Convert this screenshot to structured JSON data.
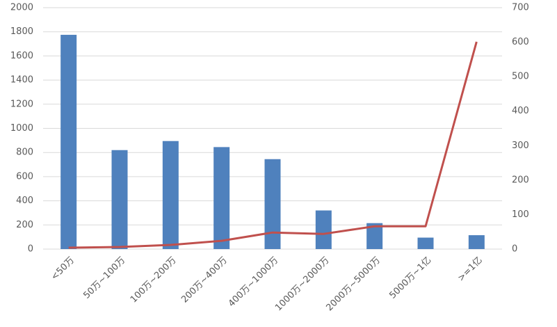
{
  "chart_data": {
    "type": "bar-line",
    "categories": [
      "<50万",
      "50万~100万",
      "100万~200万",
      "200万~400万",
      "400万~1000万",
      "1000万~2000万",
      "2000万~5000万",
      "5000万~1亿",
      ">=1亿"
    ],
    "series": [
      {
        "type": "bar",
        "color": "#4f81bd",
        "values": [
          1775,
          820,
          895,
          845,
          745,
          320,
          215,
          95,
          115
        ]
      },
      {
        "type": "line",
        "axis": "y2",
        "color": "#c0504d",
        "values": [
          4,
          6,
          12,
          24,
          48,
          44,
          66,
          66,
          601
        ]
      }
    ],
    "ylim": [
      0,
      2000
    ],
    "yticks": [
      0,
      200,
      400,
      600,
      800,
      1000,
      1200,
      1400,
      1600,
      1800,
      2000
    ],
    "y2lim": [
      0,
      700
    ],
    "y2ticks": [
      0,
      100,
      200,
      300,
      400,
      500,
      600,
      700
    ],
    "grid": true
  }
}
